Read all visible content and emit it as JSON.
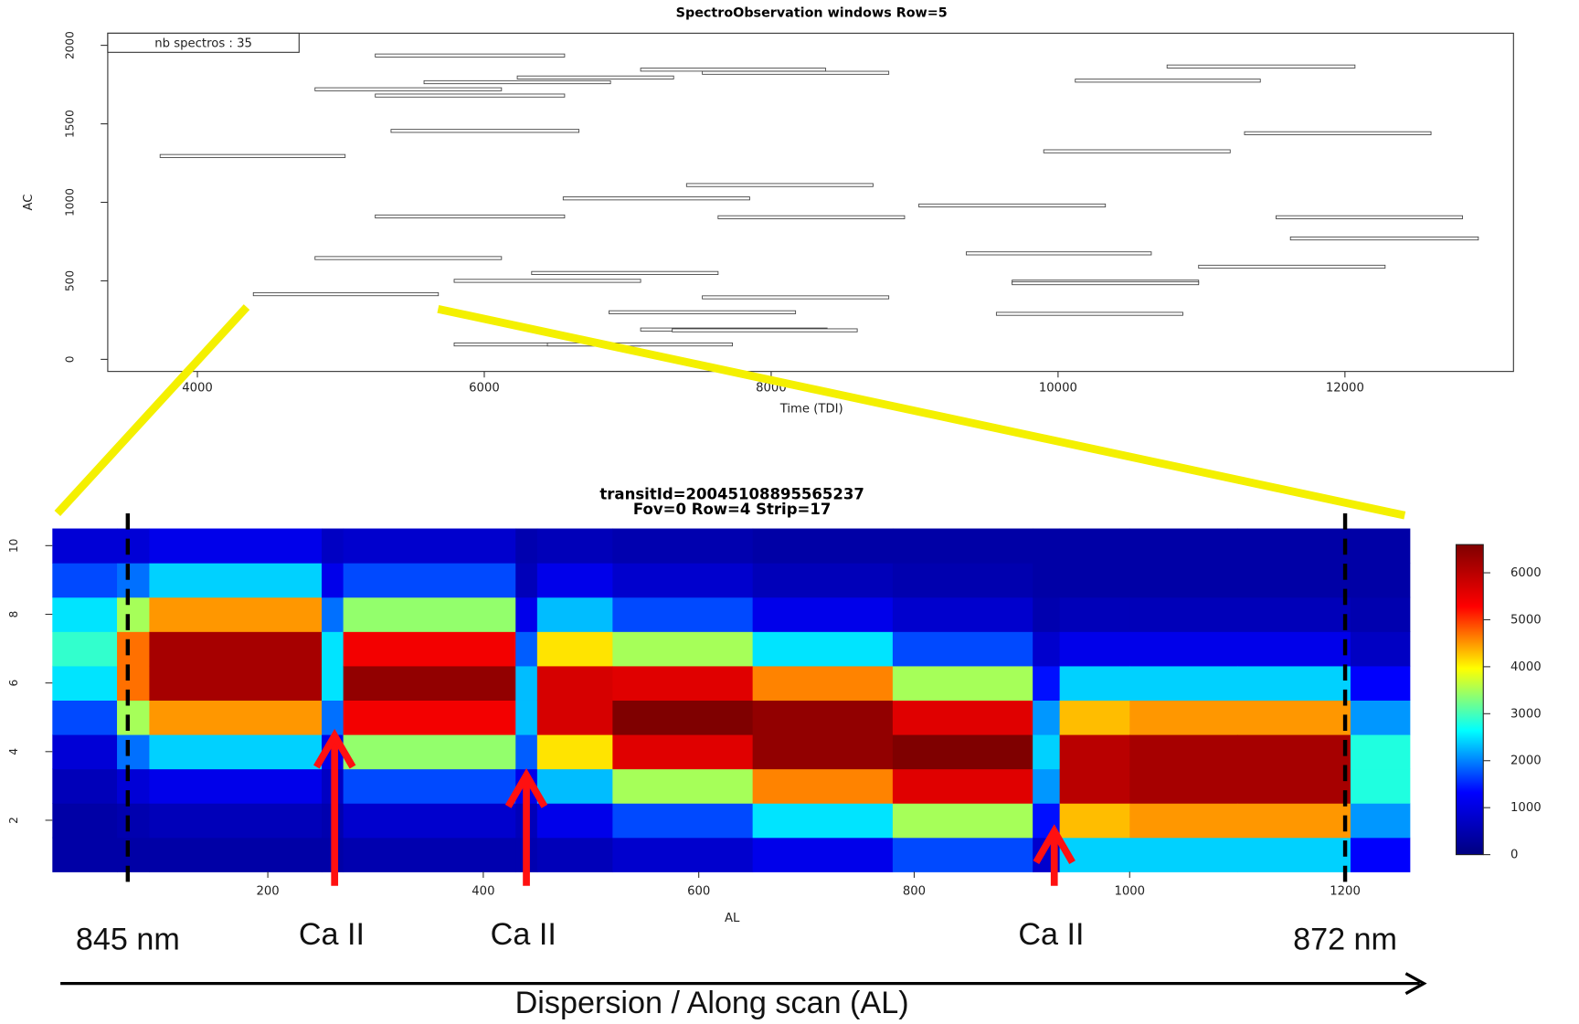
{
  "chart_data": [
    {
      "type": "segments",
      "title": "SpectroObservation windows  Row=5",
      "legend_text": "nb spectros : 35",
      "xlabel": "Time (TDI)",
      "ylabel": "AC",
      "x_start": [
        5240,
        7090,
        7520,
        6230,
        5580,
        4820,
        5240,
        5350,
        3740,
        10760,
        10120,
        11300,
        9900,
        7410,
        6550,
        9030,
        5240,
        7630,
        11520,
        11620,
        9360,
        4820,
        10980,
        6330,
        5790,
        9680,
        4390,
        7520,
        6870,
        9570,
        7090,
        7310,
        5790,
        6440,
        9680
      ],
      "x_end": [
        6560,
        8380,
        8820,
        7320,
        6880,
        6120,
        6560,
        6660,
        5030,
        12070,
        11410,
        12600,
        11200,
        8710,
        7850,
        10330,
        6560,
        8930,
        12820,
        12930,
        10650,
        6120,
        12280,
        7630,
        7090,
        10980,
        5680,
        8820,
        8170,
        10870,
        8390,
        8600,
        7090,
        7730,
        10980
      ],
      "y": [
        1935,
        1845,
        1825,
        1795,
        1765,
        1720,
        1680,
        1455,
        1295,
        1865,
        1775,
        1440,
        1325,
        1110,
        1025,
        980,
        910,
        905,
        905,
        770,
        675,
        645,
        590,
        550,
        500,
        495,
        415,
        395,
        300,
        290,
        190,
        185,
        95,
        95,
        485
      ],
      "xlim": [
        3375,
        13175
      ],
      "ylim": [
        -77,
        2077
      ],
      "xticks": [
        4000,
        6000,
        8000,
        10000,
        12000
      ],
      "yticks": [
        0,
        500,
        1000,
        1500,
        2000
      ]
    },
    {
      "type": "heatmap",
      "title": "transitId=20045108895565237",
      "subtitle": "Fov=0 Row=4 Strip=17",
      "xlabel": "AL",
      "x_edges": [
        0,
        60,
        90,
        250,
        270,
        430,
        450,
        520,
        650,
        780,
        910,
        935,
        1000,
        1100,
        1205,
        1260
      ],
      "y": [
        1,
        2,
        3,
        4,
        5,
        6,
        7,
        8,
        9,
        10
      ],
      "z": [
        [
          400,
          400,
          600,
          900,
          1700,
          2500,
          2900,
          2500,
          1700,
          900
        ],
        [
          400,
          500,
          900,
          1900,
          3500,
          4700,
          4700,
          3500,
          1900,
          900
        ],
        [
          400,
          600,
          1100,
          2400,
          4500,
          6200,
          6200,
          4500,
          2400,
          1100
        ],
        [
          400,
          500,
          700,
          1100,
          1900,
          2500,
          2500,
          1900,
          1100,
          700
        ],
        [
          500,
          800,
          1700,
          3400,
          5400,
          6400,
          5400,
          3400,
          1700,
          800
        ],
        [
          500,
          600,
          1100,
          1800,
          2300,
          2300,
          1800,
          1100,
          600,
          500
        ],
        [
          600,
          1100,
          2300,
          4100,
          5700,
          5700,
          4100,
          2300,
          1100,
          600
        ],
        [
          800,
          1700,
          3500,
          5600,
          6600,
          5600,
          3500,
          1700,
          800,
          500
        ],
        [
          1100,
          2500,
          4600,
          6400,
          6400,
          4600,
          2500,
          1100,
          600,
          400
        ],
        [
          1700,
          3500,
          5600,
          6600,
          5600,
          3500,
          1700,
          800,
          500,
          400
        ],
        [
          800,
          1400,
          2100,
          2400,
          2100,
          1400,
          800,
          500,
          400,
          400
        ],
        [
          2400,
          4300,
          6000,
          6000,
          4300,
          2400,
          1100,
          600,
          400,
          400
        ],
        [
          2400,
          4500,
          6200,
          6200,
          4500,
          2400,
          1100,
          600,
          400,
          400
        ],
        [
          2400,
          4500,
          6200,
          6200,
          4500,
          2400,
          1100,
          600,
          400,
          400
        ],
        [
          1300,
          2100,
          2800,
          2800,
          2100,
          1300,
          700,
          500,
          400,
          400
        ]
      ],
      "xlim": [
        0,
        1260
      ],
      "ylim": [
        0.5,
        10.5
      ],
      "zlim": [
        0,
        6600
      ],
      "xticks": [
        200,
        400,
        600,
        800,
        1000,
        1200
      ],
      "yticks": [
        2,
        4,
        6,
        8,
        10
      ],
      "zticks": [
        0,
        1000,
        2000,
        3000,
        4000,
        5000,
        6000
      ],
      "colormap": [
        "#00007f",
        "#0000ff",
        "#00ffff",
        "#ffff00",
        "#ff0000",
        "#7f0000"
      ],
      "markers": [
        {
          "x": 70,
          "label": "845 nm"
        },
        {
          "x": 1200,
          "label": "872 nm"
        }
      ],
      "arrows": [
        {
          "x": 262,
          "y": 4.55,
          "label": "Ca II"
        },
        {
          "x": 440,
          "y": 3.4,
          "label": "Ca II"
        },
        {
          "x": 930,
          "y": 1.77,
          "label": "Ca II"
        }
      ],
      "footer": "Dispersion / Along scan (AL)"
    }
  ]
}
